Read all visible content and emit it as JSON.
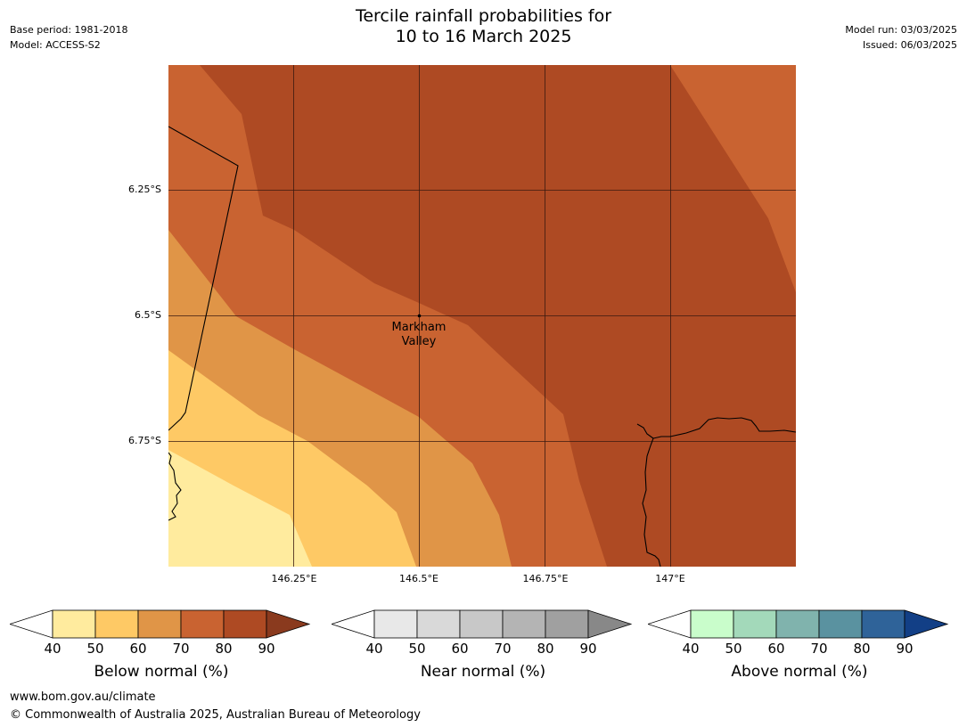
{
  "header": {
    "title_line1": "Tercile rainfall probabilities for",
    "title_line2": "10 to 16 March 2025",
    "base_period": "Base period: 1981-2018",
    "model": "Model: ACCESS-S2",
    "model_run": "Model run: 03/03/2025",
    "issued": "Issued: 06/03/2025"
  },
  "map": {
    "lat_labels": [
      "6.25°S",
      "6.5°S",
      "6.75°S"
    ],
    "lon_labels": [
      "146.25°E",
      "146.5°E",
      "146.75°E",
      "147°E"
    ],
    "place": {
      "name_line1": "Markham",
      "name_line2": "Valley"
    },
    "colors": {
      "40": "#ffeb9e",
      "50": "#fec965",
      "60": "#e09547",
      "70": "#c96331",
      "80": "#ae4a23"
    }
  },
  "colorbars": [
    {
      "title": "Below normal (%)",
      "ticks": [
        "40",
        "50",
        "60",
        "70",
        "80",
        "90"
      ],
      "colors": [
        "#ffeb9e",
        "#fec965",
        "#e09547",
        "#c96331",
        "#ae4a23"
      ],
      "extend_color": "#8a3a1e"
    },
    {
      "title": "Near normal (%)",
      "ticks": [
        "40",
        "50",
        "60",
        "70",
        "80",
        "90"
      ],
      "colors": [
        "#e8e8e8",
        "#d9d9d9",
        "#c8c8c8",
        "#b4b4b4",
        "#a0a0a0"
      ],
      "extend_color": "#888888"
    },
    {
      "title": "Above normal (%)",
      "ticks": [
        "40",
        "50",
        "60",
        "70",
        "80",
        "90"
      ],
      "colors": [
        "#c9fdcb",
        "#a3d9ba",
        "#80b3ad",
        "#5a92a0",
        "#2f6399"
      ],
      "extend_color": "#123f86"
    }
  ],
  "footer": {
    "url": "www.bom.gov.au/climate",
    "copyright": "© Commonwealth of Australia 2025, Australian Bureau of Meteorology"
  }
}
